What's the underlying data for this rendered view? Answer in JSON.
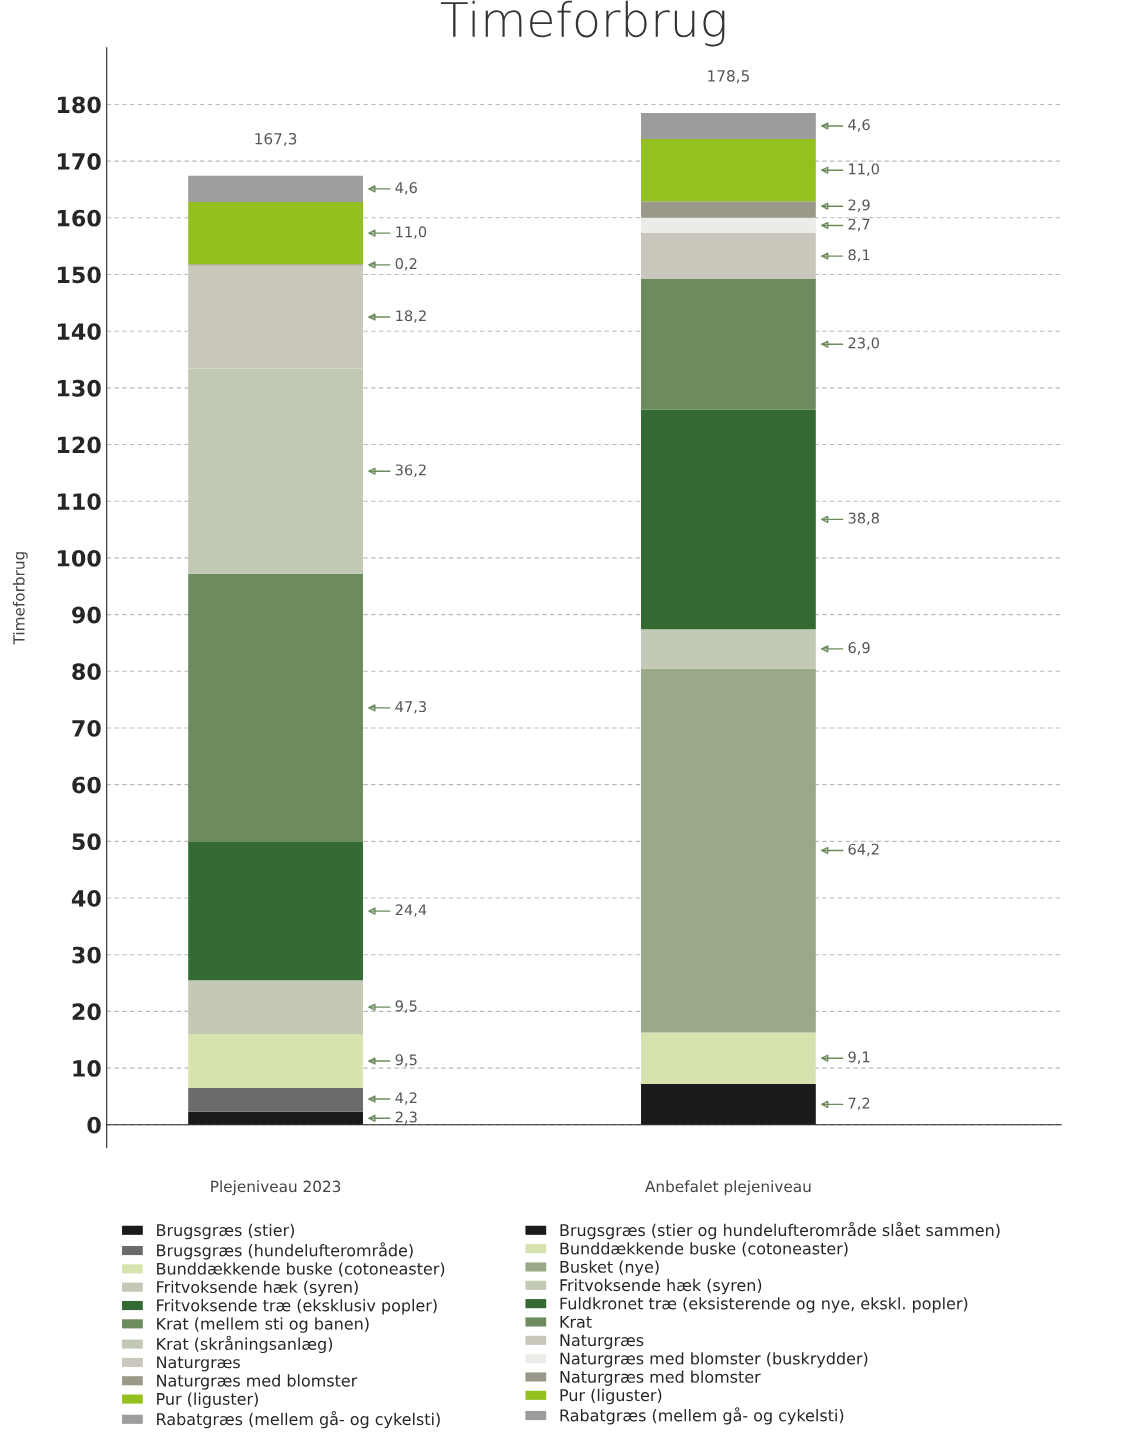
{
  "chart_data": {
    "type": "bar",
    "stacked": true,
    "title": "Timeforbrug",
    "ylabel": "Timeforbrug",
    "categories": [
      "Plejeniveau 2023",
      "Anbefalet plejeniveau"
    ],
    "ylim": [
      -4,
      190
    ],
    "yticks": [
      0,
      10,
      20,
      30,
      40,
      50,
      60,
      70,
      80,
      90,
      100,
      110,
      120,
      130,
      140,
      150,
      160,
      170,
      180
    ],
    "grid": "y",
    "legend": "bottom",
    "totals": [
      "167,3",
      "178,5"
    ],
    "series": [
      {
        "name": "Brugsgræs (stier)",
        "color": "#1a1a1a",
        "values": [
          2.3,
          null
        ],
        "value_labels": [
          "2,3",
          null
        ]
      },
      {
        "name": "Brugsgræs (hundelufterområde)",
        "color": "#6b6b6b",
        "values": [
          4.2,
          null
        ],
        "value_labels": [
          "4,2",
          null
        ]
      },
      {
        "name": "Bunddækkende buske (cotoneaster)",
        "color": "#d8e4b0",
        "values": [
          9.5,
          null
        ],
        "value_labels": [
          "9,5",
          null
        ]
      },
      {
        "name": "Fritvoksende hæk (syren)",
        "color": "#c3c9b5",
        "values": [
          9.5,
          null
        ],
        "value_labels": [
          "9,5",
          null
        ]
      },
      {
        "name": "Fritvoksende træ (eksklusiv popler)",
        "color": "#336b33",
        "values": [
          24.4,
          null
        ],
        "value_labels": [
          "24,4",
          null
        ]
      },
      {
        "name": "Krat (mellem sti og banen)",
        "color": "#6d8c5e",
        "values": [
          47.3,
          null
        ],
        "value_labels": [
          "47,3",
          null
        ]
      },
      {
        "name": "Krat (skråningsanlæg)",
        "color": "#c1c8b4",
        "values": [
          36.2,
          null
        ],
        "value_labels": [
          "36,2",
          null
        ]
      },
      {
        "name": "Naturgræs",
        "color": "#cac8bc",
        "values": [
          18.2,
          null
        ],
        "value_labels": [
          "18,2",
          null
        ]
      },
      {
        "name": "Naturgræs med blomster",
        "color": "#9b9a8a",
        "values": [
          0.2,
          null
        ],
        "value_labels": [
          "0,2",
          null
        ]
      },
      {
        "name": "Pur (liguster)",
        "color": "#93c01f",
        "values": [
          11.0,
          null
        ],
        "value_labels": [
          "11,0",
          null
        ]
      },
      {
        "name": "Rabatgræs (mellem gå- og cykelsti)",
        "color": "#9d9d9d",
        "values": [
          4.6,
          null
        ],
        "value_labels": [
          "4,6",
          null
        ]
      },
      {
        "name": "Brugsgræs (stier og hundelufterområde slået sammen)",
        "color": "#1b1b1b",
        "values": [
          null,
          7.2
        ],
        "value_labels": [
          null,
          "7,2"
        ]
      },
      {
        "name": "Bunddækkende buske (cotoneaster)",
        "color": "#d7e3af",
        "values": [
          null,
          9.1
        ],
        "value_labels": [
          null,
          "9,1"
        ]
      },
      {
        "name": "Busket (nye)",
        "color": "#9aaa88",
        "values": [
          null,
          64.2
        ],
        "value_labels": [
          null,
          "64,2"
        ]
      },
      {
        "name": "Fritvoksende hæk (syren)",
        "color": "#c2c9b5",
        "values": [
          null,
          6.9
        ],
        "value_labels": [
          null,
          "6,9"
        ]
      },
      {
        "name": "Fuldkronet træ (eksisterende og nye, ekskl. popler)",
        "color": "#346a32",
        "values": [
          null,
          38.8
        ],
        "value_labels": [
          null,
          "38,8"
        ]
      },
      {
        "name": "Krat",
        "color": "#6e8b5f",
        "values": [
          null,
          23.0
        ],
        "value_labels": [
          null,
          "23,0"
        ]
      },
      {
        "name": "Naturgræs",
        "color": "#c9c7bb",
        "values": [
          null,
          8.1
        ],
        "value_labels": [
          null,
          "8,1"
        ]
      },
      {
        "name": "Naturgræs med blomster (buskrydder)",
        "color": "#ebebe8",
        "values": [
          null,
          2.7
        ],
        "value_labels": [
          null,
          "2,7"
        ]
      },
      {
        "name": "Naturgræs med blomster",
        "color": "#9a9989",
        "values": [
          null,
          2.9
        ],
        "value_labels": [
          null,
          "2,9"
        ]
      },
      {
        "name": "Pur (liguster)",
        "color": "#94c020",
        "values": [
          null,
          11.0
        ],
        "value_labels": [
          null,
          "11,0"
        ]
      },
      {
        "name": "Rabatgræs (mellem gå- og cykelsti)",
        "color": "#9c9c9c",
        "values": [
          null,
          4.6
        ],
        "value_labels": [
          null,
          "4,6"
        ]
      }
    ]
  }
}
